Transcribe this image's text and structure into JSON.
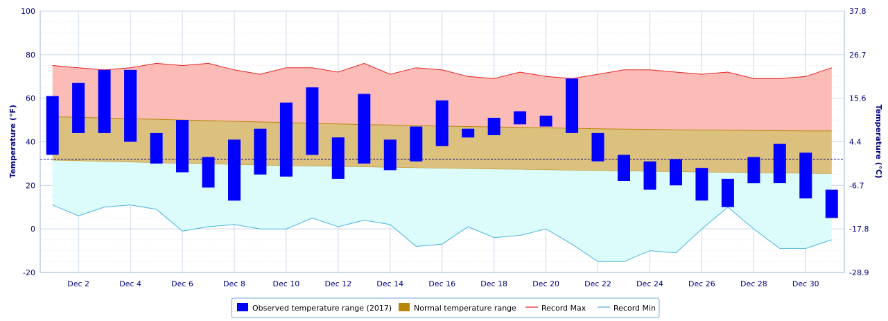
{
  "chart_data": {
    "type": "floating-bar+area",
    "xlabel": "",
    "ylabel_left": "Temperature (°F)",
    "ylabel_right": "Temperature (°C)",
    "ylim_f": [
      -20,
      100
    ],
    "y_ticks_f": [
      "-20",
      "0",
      "20",
      "40",
      "60",
      "80",
      "100"
    ],
    "y_ticks_c": [
      "-28.9",
      "-17.8",
      "-6.7",
      "4.4",
      "15.6",
      "26.7",
      "37.8"
    ],
    "x_tick_labels": [
      "Dec 2",
      "Dec 4",
      "Dec 6",
      "Dec 8",
      "Dec 10",
      "Dec 12",
      "Dec 14",
      "Dec 16",
      "Dec 18",
      "Dec 20",
      "Dec 22",
      "Dec 24",
      "Dec 26",
      "Dec 28",
      "Dec 30"
    ],
    "days": [
      1,
      2,
      3,
      4,
      5,
      6,
      7,
      8,
      9,
      10,
      11,
      12,
      13,
      14,
      15,
      16,
      17,
      18,
      19,
      20,
      21,
      22,
      23,
      24,
      25,
      26,
      27,
      28,
      29,
      30,
      31
    ],
    "freezing_line_f": 32,
    "grid": true,
    "legend_position": "bottom-center",
    "series": [
      {
        "name": "Observed temperature range (2017)",
        "color": "#0000ff",
        "low": [
          34,
          44,
          44,
          40,
          30,
          26,
          19,
          13,
          25,
          24,
          34,
          23,
          30,
          27,
          31,
          38,
          42,
          43,
          48,
          47,
          44,
          31,
          22,
          18,
          20,
          13,
          10,
          21,
          21,
          14,
          5
        ],
        "high": [
          61,
          67,
          73,
          73,
          44,
          50,
          33,
          41,
          46,
          58,
          65,
          42,
          62,
          41,
          47,
          59,
          46,
          51,
          54,
          52,
          69,
          44,
          34,
          31,
          32,
          28,
          23,
          33,
          39,
          35,
          18
        ]
      },
      {
        "name": "Normal temperature range",
        "color": "#b8860b",
        "low": [
          31.5,
          31.2,
          30.9,
          30.6,
          30.3,
          30.0,
          29.8,
          29.5,
          29.2,
          29.0,
          28.8,
          28.6,
          28.4,
          28.2,
          28.0,
          27.8,
          27.6,
          27.4,
          27.3,
          27.1,
          26.9,
          26.7,
          26.5,
          26.4,
          26.2,
          26.0,
          25.9,
          25.7,
          25.6,
          25.4,
          25.3
        ],
        "high": [
          51.5,
          51.2,
          50.9,
          50.6,
          50.3,
          50.0,
          49.7,
          49.4,
          49.1,
          48.8,
          48.5,
          48.2,
          47.9,
          47.7,
          47.4,
          47.2,
          47.0,
          46.8,
          46.6,
          46.4,
          46.2,
          46.0,
          45.8,
          45.7,
          45.5,
          45.4,
          45.3,
          45.2,
          45.1,
          45.0,
          45.0
        ]
      },
      {
        "name": "Record Max",
        "color": "#e62020",
        "values": [
          75,
          74,
          73,
          74,
          76,
          75,
          76,
          73,
          71,
          74,
          74,
          72,
          76,
          71,
          74,
          73,
          70,
          69,
          72,
          70,
          69,
          71,
          73,
          73,
          72,
          71,
          72,
          69,
          69,
          70,
          74
        ]
      },
      {
        "name": "Record Min",
        "color": "#4cb3e0",
        "values": [
          11,
          6,
          10,
          11,
          9,
          -1,
          1,
          2,
          0,
          0,
          5,
          1,
          4,
          2,
          -8,
          -7,
          1,
          -4,
          -3,
          0,
          -7,
          -15,
          -15,
          -10,
          -11,
          0,
          10,
          0,
          -9,
          -9,
          -5
        ]
      }
    ]
  }
}
